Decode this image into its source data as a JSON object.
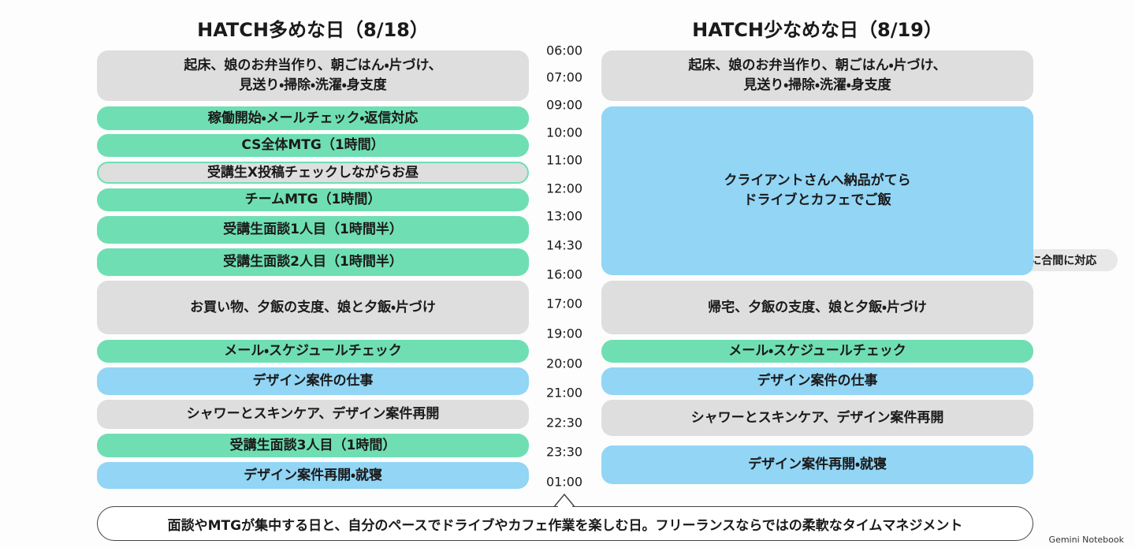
{
  "left": {
    "title": "HATCH多めな日（8/18）",
    "blocks": [
      {
        "lines": [
          "起床、娘のお弁当作り、朝ごはん・片づけ、",
          "見送り・掃除・洗濯・身支度"
        ]
      },
      {
        "lines": [
          "稼働開始・メールチェック・返信対応"
        ]
      },
      {
        "lines": [
          "CS全体MTG（1時間）"
        ]
      },
      {
        "lines": [
          "受講生X投稿チェックしながらお昼"
        ]
      },
      {
        "lines": [
          "チームMTG（1時間）"
        ]
      },
      {
        "lines": [
          "受講生面談1人目（1時間半）"
        ]
      },
      {
        "lines": [
          "受講生面談2人目（1時間半）"
        ]
      },
      {
        "lines": [
          "お買い物、夕飯の支度、娘と夕飯・片づけ"
        ]
      },
      {
        "lines": [
          "メール・スケジュールチェック"
        ]
      },
      {
        "lines": [
          "デザイン案件の仕事"
        ]
      },
      {
        "lines": [
          "シャワーとスキンケア、デザイン案件再開"
        ]
      },
      {
        "lines": [
          "受講生面談3人目（1時間）"
        ]
      },
      {
        "lines": [
          "デザイン案件再開・就寝"
        ]
      }
    ]
  },
  "right": {
    "title": "HATCH少なめな日（8/19）",
    "blocks": [
      {
        "lines": [
          "起床、娘のお弁当作り、朝ごはん・片づけ、",
          "見送り・掃除・洗濯・身支度"
        ]
      },
      {
        "lines": [
          "クライアントさんへ納品がてら",
          "ドライブとカフェでご飯"
        ]
      },
      {
        "lines": [
          "帰宅、夕飯の支度、娘と夕飯・片づけ"
        ]
      },
      {
        "lines": [
          "メール・スケジュールチェック"
        ]
      },
      {
        "lines": [
          "デザイン案件の仕事"
        ]
      },
      {
        "lines": [
          "シャワーとスキンケア、デザイン案件再開"
        ]
      },
      {
        "lines": [
          "デザイン案件再開・就寝"
        ]
      }
    ],
    "note": "※受講生チャット対応は小まめに合間に対応"
  },
  "times": [
    "06:00",
    "07:00",
    "09:00",
    "10:00",
    "11:00",
    "12:00",
    "13:00",
    "14:30",
    "16:00",
    "17:00",
    "19:00",
    "20:00",
    "21:00",
    "22:30",
    "23:30",
    "01:00"
  ],
  "footer": "面談やMTGが集中する日と、自分のペースでドライブやカフェ作業を楽しむ日。フリーランスならではの柔軟なタイムマネジメント",
  "watermark": "Gemini Notebook"
}
